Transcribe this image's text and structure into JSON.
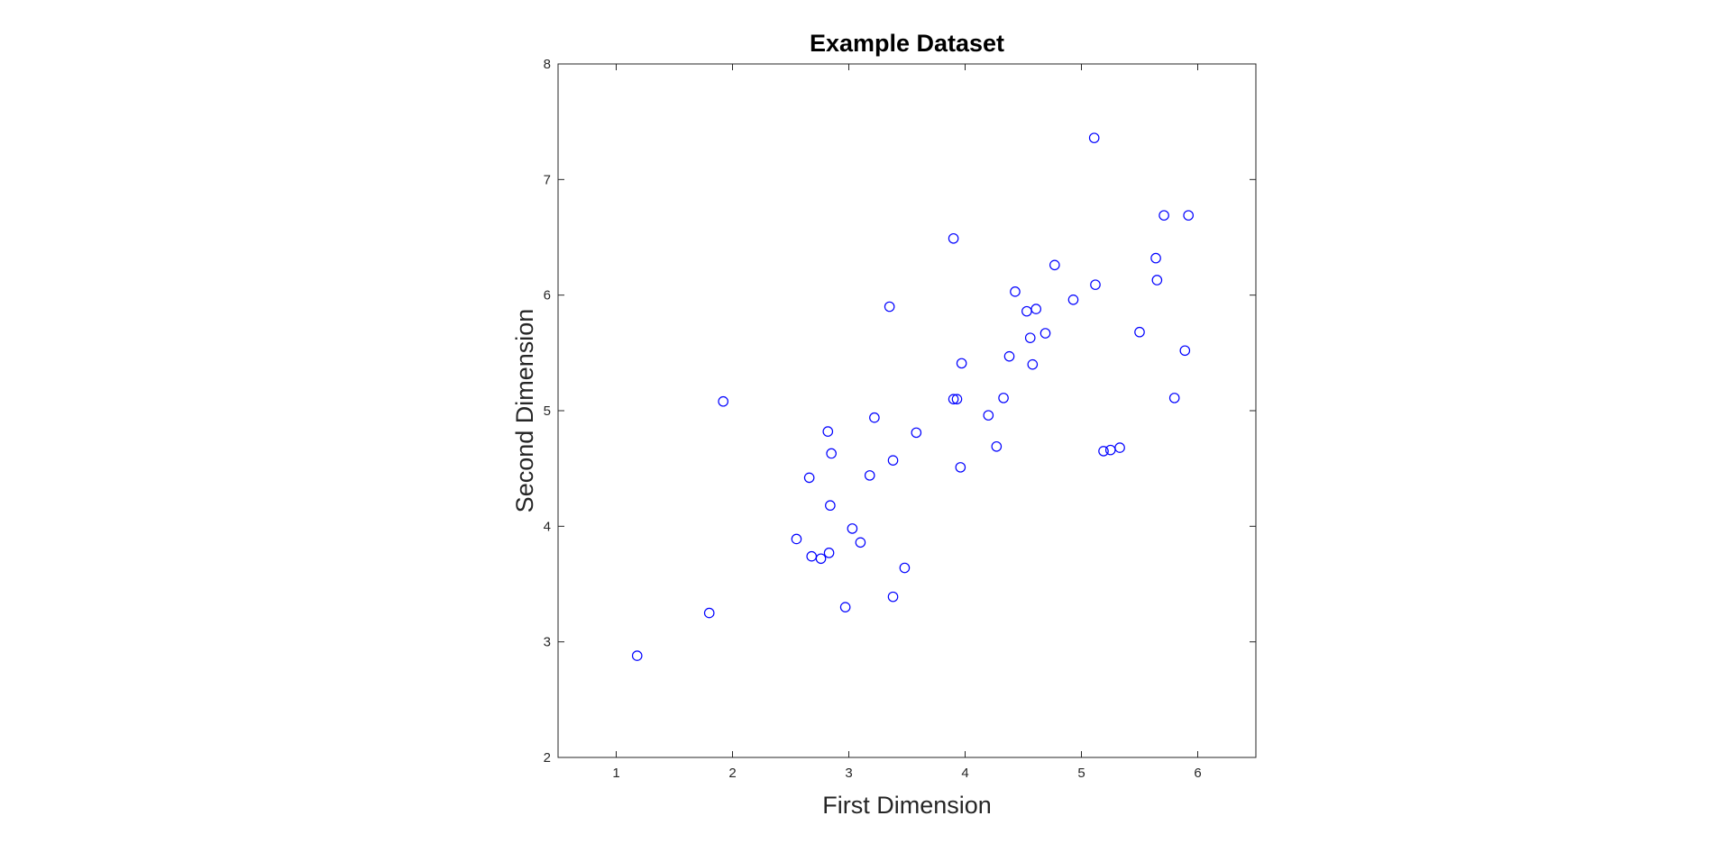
{
  "chart_data": {
    "type": "scatter",
    "title": "Example Dataset",
    "xlabel": "First Dimension",
    "ylabel": "Second Dimension",
    "xlim": [
      0.5,
      6.5
    ],
    "ylim": [
      2,
      8
    ],
    "xticks": [
      "1",
      "2",
      "3",
      "4",
      "5",
      "6"
    ],
    "yticks": [
      "2",
      "3",
      "4",
      "5",
      "6",
      "7",
      "8"
    ],
    "grid": false,
    "legend": "none",
    "marker": "circle-open",
    "colors": {
      "marker": "#0000ff",
      "axes": "#262626"
    },
    "series": [
      {
        "points": [
          [
            1.18,
            2.88
          ],
          [
            1.8,
            3.25
          ],
          [
            1.92,
            5.08
          ],
          [
            2.55,
            3.89
          ],
          [
            2.66,
            4.42
          ],
          [
            2.68,
            3.74
          ],
          [
            2.76,
            3.72
          ],
          [
            2.82,
            4.82
          ],
          [
            2.83,
            3.77
          ],
          [
            2.84,
            4.18
          ],
          [
            2.85,
            4.63
          ],
          [
            2.97,
            3.3
          ],
          [
            3.03,
            3.98
          ],
          [
            3.1,
            3.86
          ],
          [
            3.18,
            4.44
          ],
          [
            3.22,
            4.94
          ],
          [
            3.35,
            5.9
          ],
          [
            3.38,
            4.57
          ],
          [
            3.38,
            3.39
          ],
          [
            3.48,
            3.64
          ],
          [
            3.58,
            4.81
          ],
          [
            3.9,
            6.49
          ],
          [
            3.9,
            5.1
          ],
          [
            3.93,
            5.1
          ],
          [
            3.96,
            4.51
          ],
          [
            3.97,
            5.41
          ],
          [
            4.2,
            4.96
          ],
          [
            4.27,
            4.69
          ],
          [
            4.33,
            5.11
          ],
          [
            4.38,
            5.47
          ],
          [
            4.43,
            6.03
          ],
          [
            4.53,
            5.86
          ],
          [
            4.56,
            5.63
          ],
          [
            4.58,
            5.4
          ],
          [
            4.61,
            5.88
          ],
          [
            4.69,
            5.67
          ],
          [
            4.77,
            6.26
          ],
          [
            4.93,
            5.96
          ],
          [
            5.11,
            7.36
          ],
          [
            5.12,
            6.09
          ],
          [
            5.19,
            4.65
          ],
          [
            5.25,
            4.66
          ],
          [
            5.33,
            4.68
          ],
          [
            5.5,
            5.68
          ],
          [
            5.64,
            6.32
          ],
          [
            5.65,
            6.13
          ],
          [
            5.71,
            6.69
          ],
          [
            5.8,
            5.11
          ],
          [
            5.89,
            5.52
          ],
          [
            5.92,
            6.69
          ]
        ]
      }
    ]
  }
}
